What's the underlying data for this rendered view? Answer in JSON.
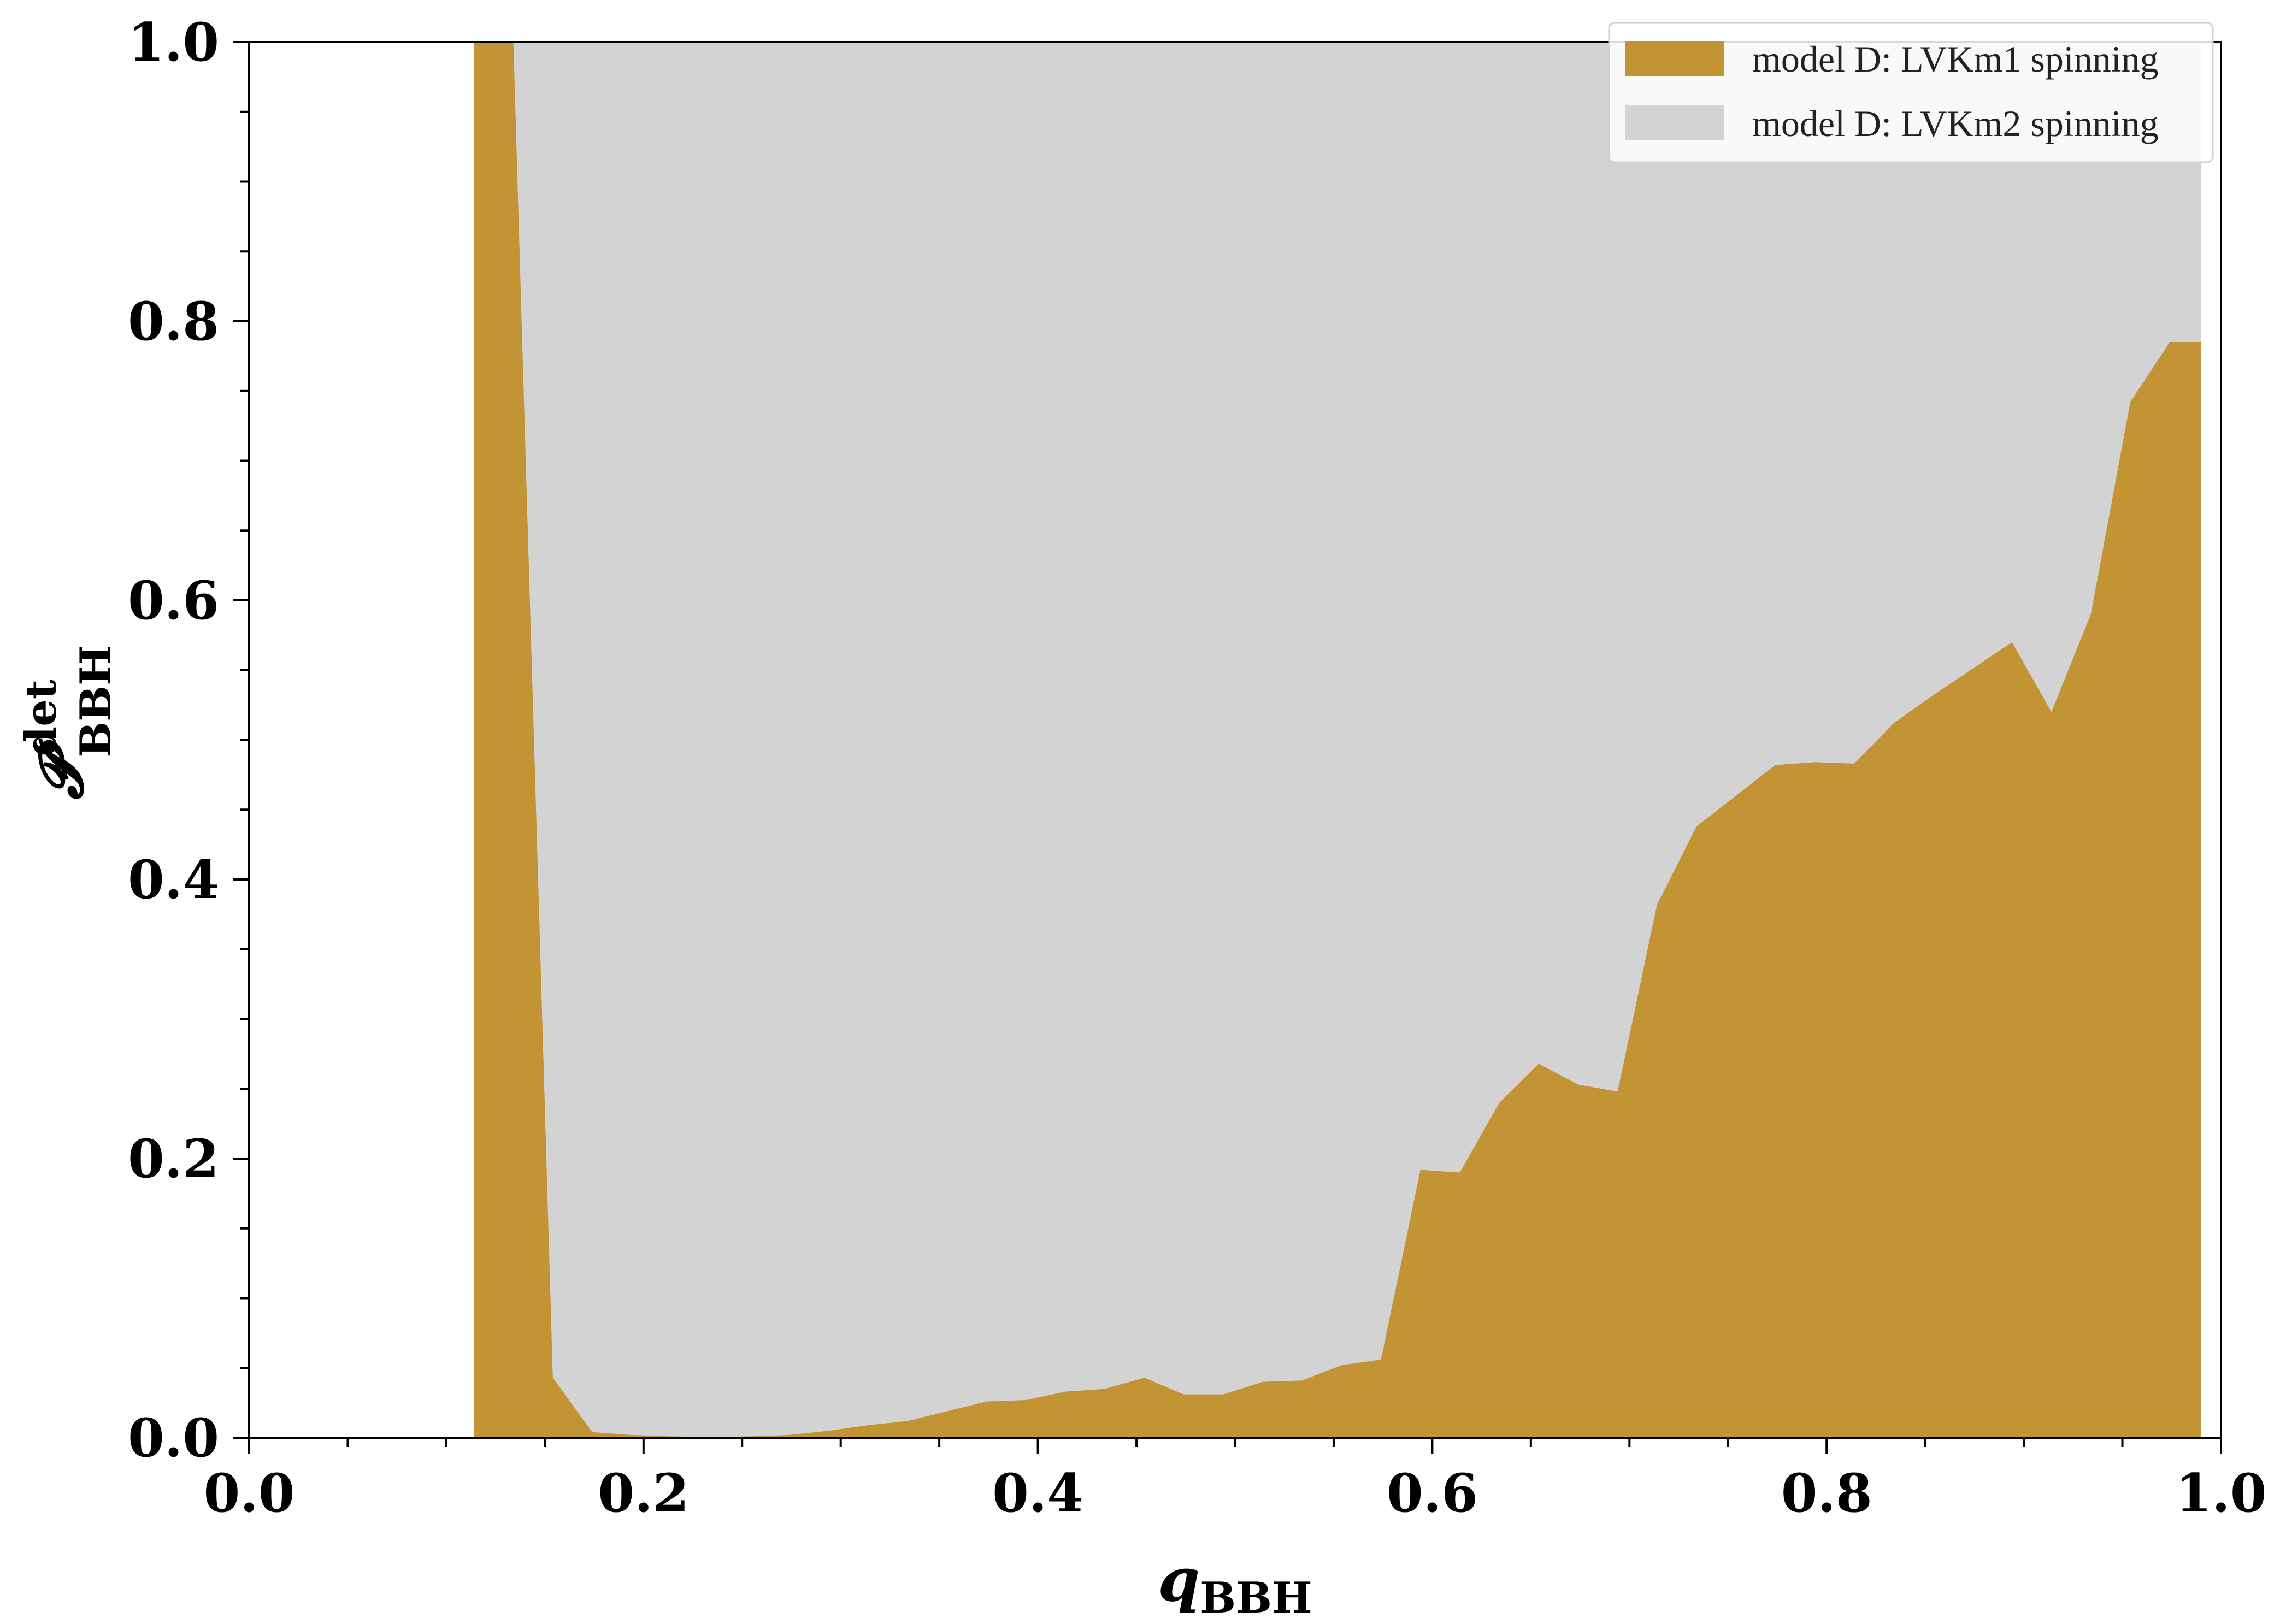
{
  "chart_data": {
    "type": "area",
    "xlabel": "q",
    "xlabel_sub": "BBH",
    "ylabel": "𝓟",
    "ylabel_sub": "BBH",
    "ylabel_sup": "det",
    "xlim": [
      0.0,
      1.0
    ],
    "ylim": [
      0.0,
      1.0
    ],
    "xticks": [
      "0.0",
      "0.2",
      "0.4",
      "0.6",
      "0.8",
      "1.0"
    ],
    "yticks": [
      "0.0",
      "0.2",
      "0.4",
      "0.6",
      "0.8",
      "1.0"
    ],
    "grid": false,
    "legend_position": "top-right",
    "series": [
      {
        "name": "model D: LVKm2 spinning",
        "color": "#d3d3d3",
        "x": [
          0.114,
          0.134,
          0.134,
          0.99,
          0.99
        ],
        "y": [
          1.0,
          1.0,
          1.0,
          1.0,
          0.0
        ]
      },
      {
        "name": "model D: LVKm1 spinning",
        "color": "#c39433",
        "x": [
          0.114,
          0.134,
          0.154,
          0.174,
          0.194,
          0.214,
          0.234,
          0.254,
          0.274,
          0.294,
          0.314,
          0.334,
          0.354,
          0.374,
          0.394,
          0.414,
          0.434,
          0.454,
          0.474,
          0.494,
          0.514,
          0.534,
          0.554,
          0.574,
          0.594,
          0.614,
          0.634,
          0.654,
          0.674,
          0.694,
          0.714,
          0.734,
          0.754,
          0.774,
          0.794,
          0.814,
          0.834,
          0.854,
          0.874,
          0.894,
          0.914,
          0.934,
          0.954,
          0.974,
          0.99
        ],
        "y": [
          1.0,
          1.0,
          0.043,
          0.004,
          0.002,
          0.001,
          0.0005,
          0.001,
          0.002,
          0.005,
          0.009,
          0.012,
          0.019,
          0.026,
          0.027,
          0.033,
          0.035,
          0.043,
          0.031,
          0.031,
          0.04,
          0.041,
          0.052,
          0.056,
          0.192,
          0.19,
          0.24,
          0.268,
          0.253,
          0.248,
          0.382,
          0.438,
          0.46,
          0.482,
          0.484,
          0.483,
          0.512,
          0.532,
          0.551,
          0.57,
          0.52,
          0.59,
          0.742,
          0.785,
          0.785
        ]
      }
    ]
  }
}
